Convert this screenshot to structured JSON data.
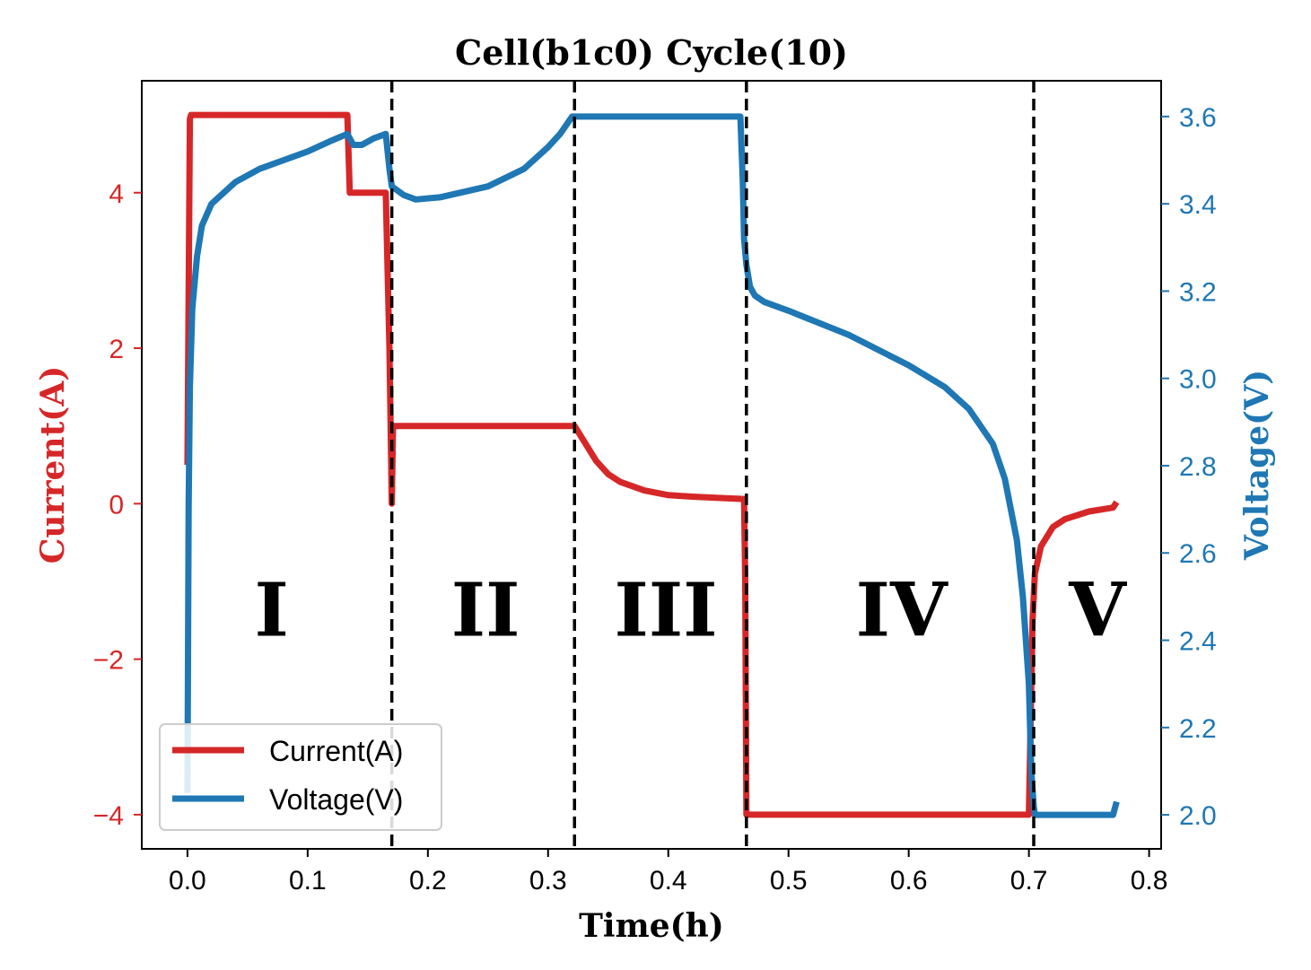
{
  "chart_data": {
    "type": "line",
    "title": "Cell(b1c0) Cycle(10)",
    "xlabel": "Time(h)",
    "ylabel_left": "Current(A)",
    "ylabel_right": "Voltage(V)",
    "xlim": [
      -0.038,
      0.81
    ],
    "ylim_left": [
      -4.44,
      5.44
    ],
    "ylim_right": [
      1.922,
      3.682
    ],
    "x_ticks": [
      0.0,
      0.1,
      0.2,
      0.3,
      0.4,
      0.5,
      0.6,
      0.7,
      0.8
    ],
    "x_tick_labels": [
      "0.0",
      "0.1",
      "0.2",
      "0.3",
      "0.4",
      "0.5",
      "0.6",
      "0.7",
      "0.8"
    ],
    "y_left_ticks": [
      -4,
      -2,
      0,
      2,
      4
    ],
    "y_left_tick_labels": [
      "−4",
      "−2",
      "0",
      "2",
      "4"
    ],
    "y_right_ticks": [
      2.0,
      2.2,
      2.4,
      2.6,
      2.8,
      3.0,
      3.2,
      3.4,
      3.6
    ],
    "y_right_tick_labels": [
      "2.0",
      "2.2",
      "2.4",
      "2.6",
      "2.8",
      "3.0",
      "3.2",
      "3.4",
      "3.6"
    ],
    "colors": {
      "current": "#d62728",
      "voltage": "#1f77b4"
    },
    "grid": false,
    "legend_position": "lower-left",
    "series": [
      {
        "name": "Current(A)",
        "axis": "left",
        "x": [
          0.0,
          0.002,
          0.003,
          0.133,
          0.135,
          0.165,
          0.168,
          0.17,
          0.171,
          0.322,
          0.33,
          0.34,
          0.35,
          0.36,
          0.38,
          0.4,
          0.42,
          0.44,
          0.463,
          0.464,
          0.465,
          0.7,
          0.703,
          0.705,
          0.71,
          0.72,
          0.73,
          0.75,
          0.77,
          0.773
        ],
        "y": [
          0.5,
          4.95,
          5.0,
          5.0,
          4.0,
          4.0,
          2.0,
          0.0,
          1.0,
          1.0,
          0.8,
          0.55,
          0.38,
          0.28,
          0.17,
          0.11,
          0.09,
          0.075,
          0.06,
          -1.0,
          -4.0,
          -4.0,
          -1.5,
          -0.9,
          -0.55,
          -0.3,
          -0.2,
          -0.1,
          -0.05,
          0.02
        ]
      },
      {
        "name": "Voltage(V)",
        "axis": "right",
        "x": [
          0.0,
          0.001,
          0.002,
          0.004,
          0.008,
          0.012,
          0.02,
          0.04,
          0.06,
          0.08,
          0.1,
          0.12,
          0.133,
          0.138,
          0.145,
          0.155,
          0.165,
          0.168,
          0.17,
          0.18,
          0.19,
          0.21,
          0.25,
          0.28,
          0.3,
          0.31,
          0.32,
          0.322,
          0.46,
          0.462,
          0.463,
          0.465,
          0.468,
          0.472,
          0.48,
          0.5,
          0.55,
          0.6,
          0.63,
          0.65,
          0.67,
          0.68,
          0.69,
          0.695,
          0.7,
          0.702,
          0.704,
          0.705,
          0.77,
          0.773
        ],
        "y": [
          2.05,
          2.7,
          2.98,
          3.16,
          3.28,
          3.35,
          3.4,
          3.45,
          3.48,
          3.5,
          3.52,
          3.545,
          3.56,
          3.535,
          3.535,
          3.55,
          3.56,
          3.48,
          3.44,
          3.42,
          3.41,
          3.415,
          3.44,
          3.48,
          3.53,
          3.56,
          3.6,
          3.6,
          3.6,
          3.45,
          3.32,
          3.26,
          3.21,
          3.19,
          3.175,
          3.155,
          3.1,
          3.03,
          2.98,
          2.93,
          2.85,
          2.77,
          2.63,
          2.5,
          2.3,
          2.1,
          2.02,
          2.0,
          2.0,
          2.03
        ]
      }
    ],
    "dividers_x": [
      0.17,
      0.322,
      0.465,
      0.704
    ],
    "regions": [
      {
        "label": "I",
        "x": 0.07
      },
      {
        "label": "II",
        "x": 0.248
      },
      {
        "label": "III",
        "x": 0.398
      },
      {
        "label": "IV",
        "x": 0.594
      },
      {
        "label": "V",
        "x": 0.757
      }
    ],
    "region_label_y_left": -1.7
  }
}
